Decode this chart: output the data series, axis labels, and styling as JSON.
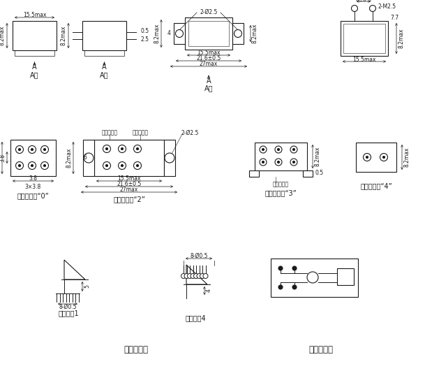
{
  "bg": "#ffffff",
  "lc": "#1a1a1a",
  "fs": 5.5,
  "fm": 7.0,
  "fl": 8.5,
  "fw": 6.09,
  "fh": 5.31,
  "dpi": 100,
  "labels": {
    "a_dir": "A向",
    "inst0": "安装方式：“0”",
    "inst2": "安装方式：“2”",
    "inst3": "安装方式：“3”",
    "inst4": "安装方式：“4”",
    "colored_insulator": "着色绦缘子",
    "pin_type": "插针式：1",
    "hook_type": "焊钉式：4",
    "terminal_type": "引出端型式",
    "bottom_circuit": "底视电路图"
  }
}
